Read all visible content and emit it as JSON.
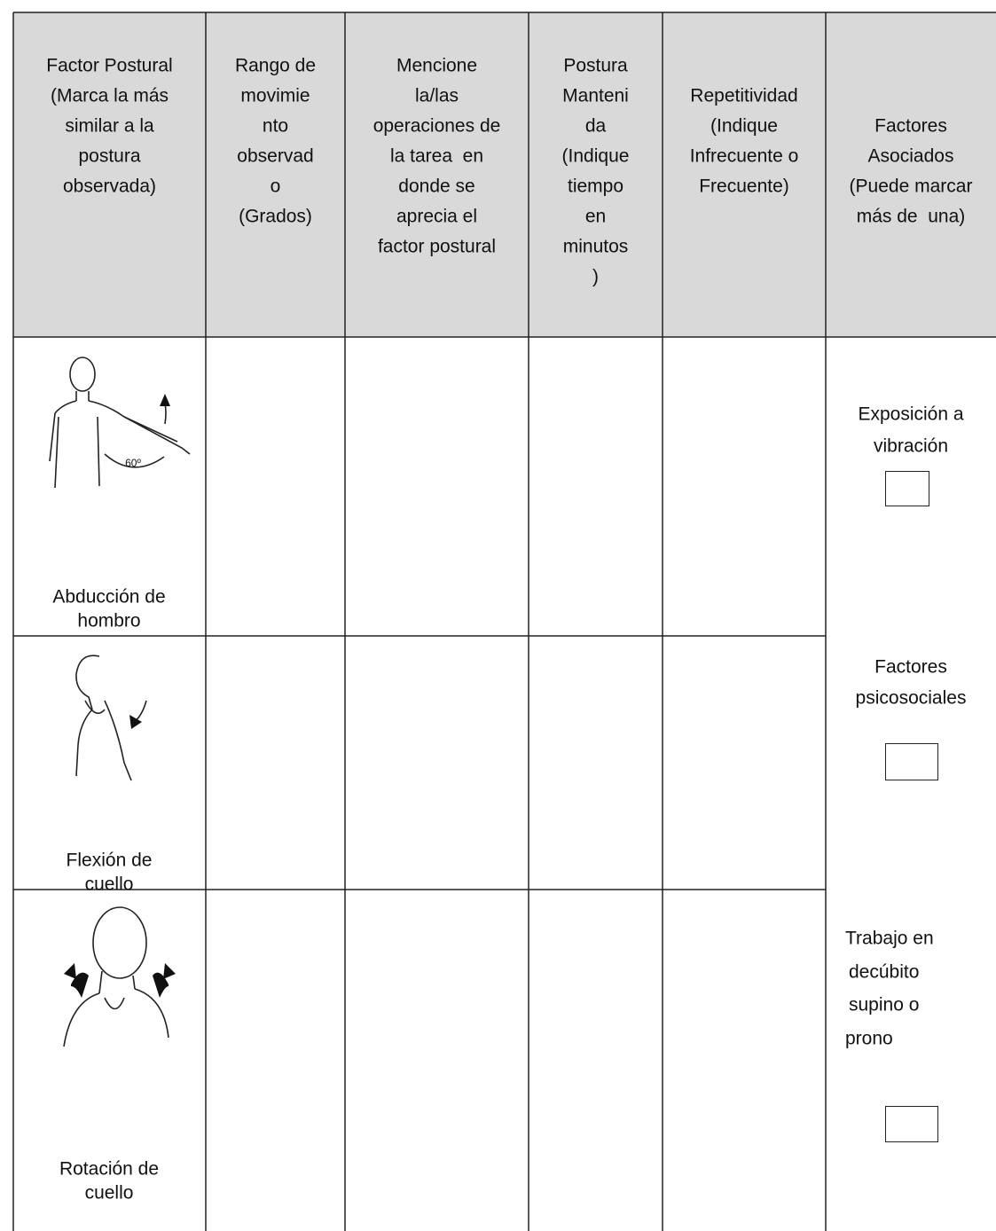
{
  "table": {
    "header": [
      [
        "Factor Postural",
        "(Marca la más",
        "similar a la",
        "postura",
        "observada)"
      ],
      [
        "Rango de",
        "movimie",
        "nto",
        "observad",
        "o",
        "(Grados)"
      ],
      [
        "Mencione",
        "la/las",
        "operaciones de",
        "la tarea  en",
        "donde se",
        "aprecia el",
        "factor postural"
      ],
      [
        "Postura",
        "Manteni",
        "da",
        "(Indique",
        "tiempo",
        "en",
        "minutos",
        ")"
      ],
      [
        "Repetitividad",
        "(Indique",
        "Infrecuente o",
        "Frecuente)"
      ],
      [
        "Factores",
        "Asociados",
        "(Puede marcar",
        "más de  una)"
      ]
    ],
    "rows": [
      {
        "posture": [
          "Abducción de",
          "hombro"
        ],
        "figure_label": "60º"
      },
      {
        "posture": [
          "Flexión de",
          "cuello"
        ]
      },
      {
        "posture": [
          "Rotación de",
          "cuello"
        ]
      }
    ],
    "associated_factors": [
      [
        "Exposición a",
        "vibración"
      ],
      [
        "Factores",
        "psicosociales"
      ],
      [
        "Trabajo en",
        "decúbito",
        "supino o",
        "prono"
      ]
    ]
  }
}
